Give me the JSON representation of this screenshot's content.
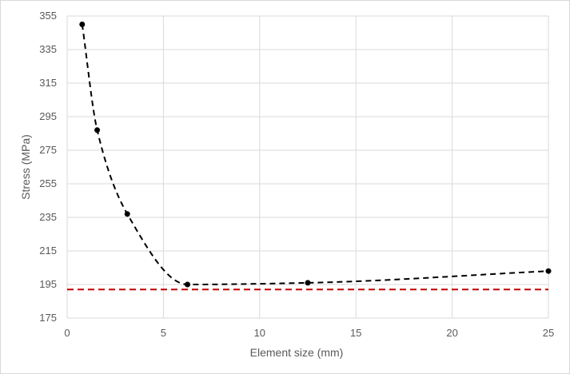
{
  "chart_data": {
    "type": "scatter",
    "title": "",
    "xlabel": "Element size (mm)",
    "ylabel": "Stress (MPa)",
    "xlim": [
      0,
      25
    ],
    "ylim": [
      175,
      355
    ],
    "xticks": [
      0,
      5,
      10,
      15,
      20,
      25
    ],
    "yticks": [
      175,
      195,
      215,
      235,
      255,
      275,
      295,
      315,
      335,
      355
    ],
    "grid": true,
    "series": [
      {
        "x": [
          0.78,
          1.56,
          3.125,
          6.25,
          12.5,
          25
        ],
        "y": [
          350,
          287,
          237,
          195,
          196,
          203
        ],
        "marker": "circle",
        "marker_color": "#000000",
        "trendline": "dashed smooth",
        "trendline_color": "#000000"
      }
    ],
    "reference_line": {
      "y": 192,
      "style": "dashed",
      "color": "#c00000"
    }
  }
}
